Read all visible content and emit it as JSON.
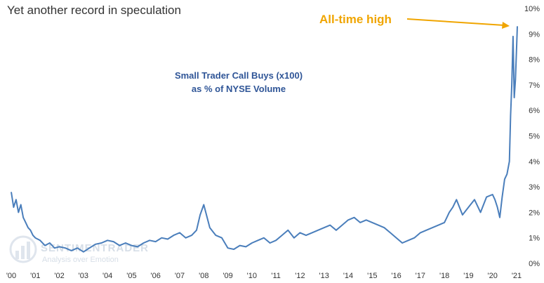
{
  "chart_data": {
    "type": "line",
    "title": "Yet another record in speculation",
    "series_label_lines": [
      "Small Trader Call Buys (x100)",
      "as % of NYSE Volume"
    ],
    "annotation": "All-time high",
    "watermark": {
      "name": "SENTIMENTRADER",
      "tagline": "Analysis over Emotion"
    },
    "x_ticks": [
      "'00",
      "'01",
      "'02",
      "'03",
      "'04",
      "'05",
      "'06",
      "'07",
      "'08",
      "'09",
      "'10",
      "'11",
      "'12",
      "'13",
      "'14",
      "'15",
      "'16",
      "'17",
      "'18",
      "'19",
      "'20",
      "'21"
    ],
    "y_ticks": [
      "0%",
      "1%",
      "2%",
      "3%",
      "4%",
      "5%",
      "6%",
      "7%",
      "8%",
      "9%",
      "10%"
    ],
    "xlim": [
      2000.0,
      2021.0
    ],
    "ylim": [
      0,
      10
    ],
    "grid": false,
    "colors": {
      "line": "#4a7ebb",
      "annotation": "#f0a500",
      "series_label": "#2f5597"
    },
    "series": [
      {
        "x": [
          2000.0,
          2000.1,
          2000.2,
          2000.3,
          2000.4,
          2000.5,
          2000.6,
          2000.7,
          2000.8,
          2000.9,
          2001.0,
          2001.2,
          2001.4,
          2001.6,
          2001.8,
          2002.0,
          2002.25,
          2002.5,
          2002.75,
          2003.0,
          2003.25,
          2003.5,
          2003.75,
          2004.0,
          2004.25,
          2004.5,
          2004.75,
          2005.0,
          2005.25,
          2005.5,
          2005.75,
          2006.0,
          2006.25,
          2006.5,
          2006.75,
          2007.0,
          2007.25,
          2007.5,
          2007.7,
          2007.85,
          2008.0,
          2008.25,
          2008.5,
          2008.75,
          2009.0,
          2009.25,
          2009.5,
          2009.75,
          2010.0,
          2010.25,
          2010.5,
          2010.75,
          2011.0,
          2011.25,
          2011.5,
          2011.75,
          2012.0,
          2012.25,
          2012.5,
          2012.75,
          2013.0,
          2013.25,
          2013.5,
          2013.75,
          2014.0,
          2014.25,
          2014.5,
          2014.75,
          2015.0,
          2015.25,
          2015.5,
          2015.75,
          2016.0,
          2016.25,
          2016.5,
          2016.75,
          2017.0,
          2017.25,
          2017.5,
          2017.75,
          2018.0,
          2018.1,
          2018.2,
          2018.35,
          2018.5,
          2018.75,
          2019.0,
          2019.25,
          2019.5,
          2019.75,
          2020.0,
          2020.1,
          2020.2,
          2020.3,
          2020.4,
          2020.5,
          2020.6,
          2020.7,
          2020.75,
          2020.8,
          2020.85,
          2020.9,
          2020.95,
          2021.0,
          2021.03
        ],
        "values": [
          2.8,
          2.2,
          2.5,
          2.0,
          2.3,
          1.8,
          1.6,
          1.4,
          1.3,
          1.1,
          1.0,
          0.9,
          0.7,
          0.8,
          0.6,
          0.65,
          0.6,
          0.5,
          0.6,
          0.45,
          0.6,
          0.75,
          0.8,
          0.9,
          0.85,
          0.7,
          0.8,
          0.7,
          0.65,
          0.8,
          0.9,
          0.85,
          1.0,
          0.95,
          1.1,
          1.2,
          1.0,
          1.1,
          1.3,
          1.9,
          2.3,
          1.4,
          1.1,
          1.0,
          0.6,
          0.55,
          0.7,
          0.65,
          0.8,
          0.9,
          1.0,
          0.8,
          0.9,
          1.1,
          1.3,
          1.0,
          1.2,
          1.1,
          1.2,
          1.3,
          1.4,
          1.5,
          1.3,
          1.5,
          1.7,
          1.8,
          1.6,
          1.7,
          1.6,
          1.5,
          1.4,
          1.2,
          1.0,
          0.8,
          0.9,
          1.0,
          1.2,
          1.3,
          1.4,
          1.5,
          1.6,
          1.8,
          2.0,
          2.2,
          2.5,
          1.9,
          2.2,
          2.5,
          2.0,
          2.6,
          2.7,
          2.5,
          2.2,
          1.8,
          2.6,
          3.3,
          3.5,
          4.0,
          5.8,
          7.0,
          8.9,
          6.5,
          7.2,
          8.5,
          9.3
        ]
      }
    ]
  }
}
